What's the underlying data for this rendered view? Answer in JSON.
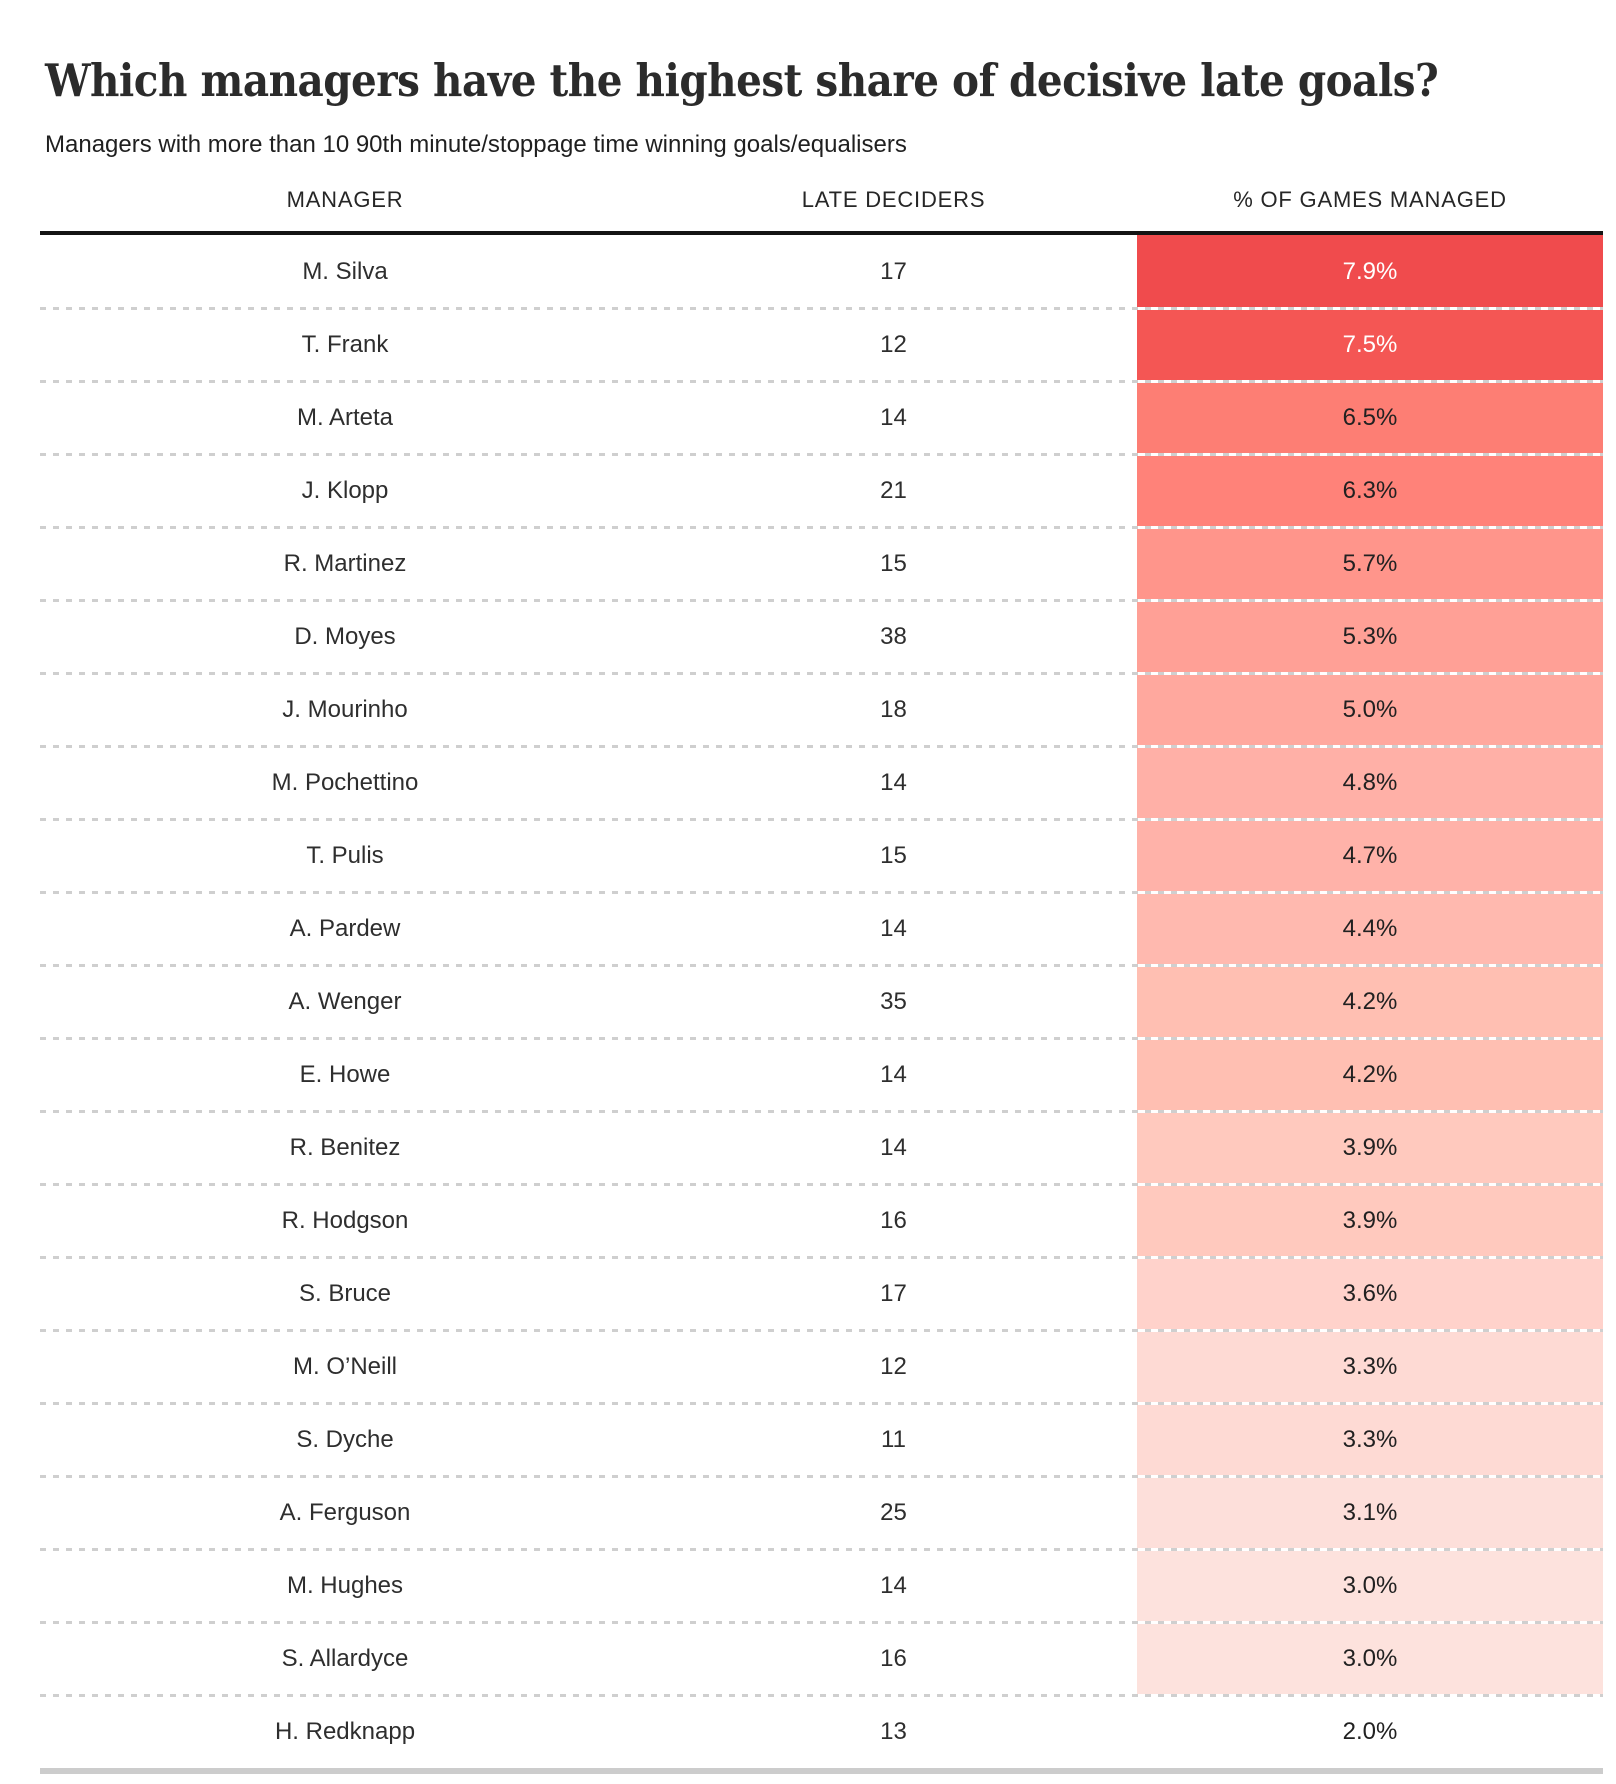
{
  "chart_data": {
    "type": "table",
    "title": "Which managers have the highest share of decisive late goals?",
    "subtitle": "Managers with more than 10 90th minute/stoppage time winning goals/equalisers",
    "columns": [
      "MANAGER",
      "LATE DECIDERS",
      "% OF GAMES MANAGED"
    ],
    "heat_column": "% OF GAMES MANAGED",
    "heat_scale": {
      "max_color": "#F04B4D",
      "min_color": "#FDE2DD",
      "uncolored_below_pct": 3.0
    },
    "rows": [
      {
        "manager": "M. Silva",
        "late_deciders": 17,
        "pct_games_managed": 7.9,
        "pct_label": "7.9%",
        "cell_color": "#F04B4D",
        "cell_text_color": "#FFFFFF"
      },
      {
        "manager": "T. Frank",
        "late_deciders": 12,
        "pct_games_managed": 7.5,
        "pct_label": "7.5%",
        "cell_color": "#F45654",
        "cell_text_color": "#FFFFFF"
      },
      {
        "manager": "M. Arteta",
        "late_deciders": 14,
        "pct_games_managed": 6.5,
        "pct_label": "6.5%",
        "cell_color": "#FD7E74",
        "cell_text_color": "#212121"
      },
      {
        "manager": "J. Klopp",
        "late_deciders": 21,
        "pct_games_managed": 6.3,
        "pct_label": "6.3%",
        "cell_color": "#FF8279",
        "cell_text_color": "#212121"
      },
      {
        "manager": "R. Martinez",
        "late_deciders": 15,
        "pct_games_managed": 5.7,
        "pct_label": "5.7%",
        "cell_color": "#FF958B",
        "cell_text_color": "#212121"
      },
      {
        "manager": "D. Moyes",
        "late_deciders": 38,
        "pct_games_managed": 5.3,
        "pct_label": "5.3%",
        "cell_color": "#FFA096",
        "cell_text_color": "#212121"
      },
      {
        "manager": "J. Mourinho",
        "late_deciders": 18,
        "pct_games_managed": 5.0,
        "pct_label": "5.0%",
        "cell_color": "#FFA89E",
        "cell_text_color": "#212121"
      },
      {
        "manager": "M. Pochettino",
        "late_deciders": 14,
        "pct_games_managed": 4.8,
        "pct_label": "4.8%",
        "cell_color": "#FFB0A7",
        "cell_text_color": "#212121"
      },
      {
        "manager": "T. Pulis",
        "late_deciders": 15,
        "pct_games_managed": 4.7,
        "pct_label": "4.7%",
        "cell_color": "#FFB2A9",
        "cell_text_color": "#212121"
      },
      {
        "manager": "A. Pardew",
        "late_deciders": 14,
        "pct_games_managed": 4.4,
        "pct_label": "4.4%",
        "cell_color": "#FFB9AF",
        "cell_text_color": "#212121"
      },
      {
        "manager": "A. Wenger",
        "late_deciders": 35,
        "pct_games_managed": 4.2,
        "pct_label": "4.2%",
        "cell_color": "#FFBFB2",
        "cell_text_color": "#212121"
      },
      {
        "manager": "E. Howe",
        "late_deciders": 14,
        "pct_games_managed": 4.2,
        "pct_label": "4.2%",
        "cell_color": "#FFBFB2",
        "cell_text_color": "#212121"
      },
      {
        "manager": "R. Benitez",
        "late_deciders": 14,
        "pct_games_managed": 3.9,
        "pct_label": "3.9%",
        "cell_color": "#FFC9BE",
        "cell_text_color": "#212121"
      },
      {
        "manager": "R. Hodgson",
        "late_deciders": 16,
        "pct_games_managed": 3.9,
        "pct_label": "3.9%",
        "cell_color": "#FFC9BE",
        "cell_text_color": "#212121"
      },
      {
        "manager": "S. Bruce",
        "late_deciders": 17,
        "pct_games_managed": 3.6,
        "pct_label": "3.6%",
        "cell_color": "#FFD2CB",
        "cell_text_color": "#212121"
      },
      {
        "manager": "M. O’Neill",
        "late_deciders": 12,
        "pct_games_managed": 3.3,
        "pct_label": "3.3%",
        "cell_color": "#FEDAD4",
        "cell_text_color": "#212121"
      },
      {
        "manager": "S. Dyche",
        "late_deciders": 11,
        "pct_games_managed": 3.3,
        "pct_label": "3.3%",
        "cell_color": "#FEDAD4",
        "cell_text_color": "#212121"
      },
      {
        "manager": "A. Ferguson",
        "late_deciders": 25,
        "pct_games_managed": 3.1,
        "pct_label": "3.1%",
        "cell_color": "#FDDFDA",
        "cell_text_color": "#212121"
      },
      {
        "manager": "M. Hughes",
        "late_deciders": 14,
        "pct_games_managed": 3.0,
        "pct_label": "3.0%",
        "cell_color": "#FDE2DD",
        "cell_text_color": "#212121"
      },
      {
        "manager": "S. Allardyce",
        "late_deciders": 16,
        "pct_games_managed": 3.0,
        "pct_label": "3.0%",
        "cell_color": "#FDE2DD",
        "cell_text_color": "#212121"
      },
      {
        "manager": "H. Redknapp",
        "late_deciders": 13,
        "pct_games_managed": 2.0,
        "pct_label": "2.0%",
        "cell_color": "transparent",
        "cell_text_color": "#212121"
      }
    ]
  },
  "colors": {
    "header_rule": "#141414",
    "row_separator": "#cfcfcf",
    "bottom_bar": "#cccccc",
    "body_text": "#2e2e2e"
  }
}
